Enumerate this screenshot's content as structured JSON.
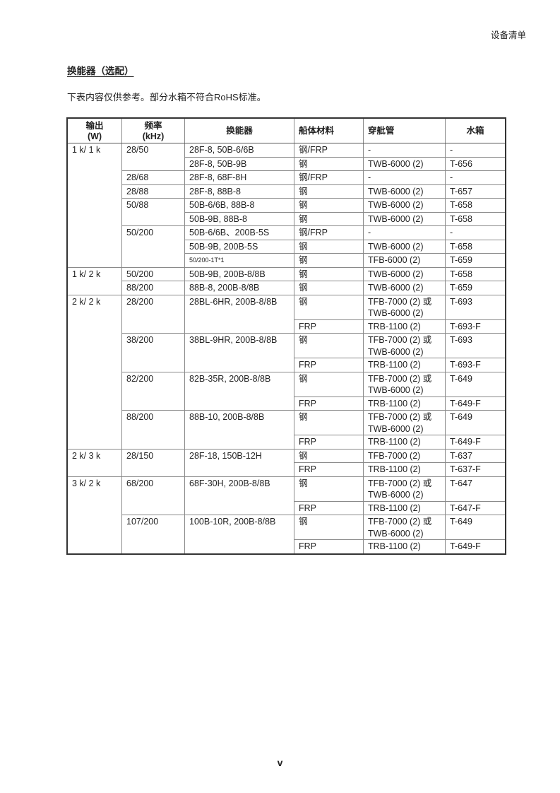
{
  "header": {
    "section": "设备清单"
  },
  "title": "换能器（选配）",
  "intro": "下表内容仅供参考。部分水箱不符合RoHS标准。",
  "table": {
    "headers": [
      "输出\n(W)",
      "频率\n(kHz)",
      "换能器",
      "船体材料",
      "穿舭管",
      "水箱"
    ],
    "rows": [
      [
        {
          "t": "1 k/ 1 k",
          "rs": 9
        },
        {
          "t": "28/50",
          "rs": 2
        },
        {
          "t": "28F-8, 50B-6/6B"
        },
        {
          "t": "钢/FRP"
        },
        {
          "t": "-"
        },
        {
          "t": "-"
        }
      ],
      [
        {
          "t": "28F-8, 50B-9B"
        },
        {
          "t": "钢"
        },
        {
          "t": "TWB-6000 (2)"
        },
        {
          "t": "T-656"
        }
      ],
      [
        {
          "t": "28/68"
        },
        {
          "t": "28F-8, 68F-8H"
        },
        {
          "t": "钢/FRP"
        },
        {
          "t": "-"
        },
        {
          "t": "-"
        }
      ],
      [
        {
          "t": "28/88"
        },
        {
          "t": "28F-8, 88B-8"
        },
        {
          "t": "钢"
        },
        {
          "t": "TWB-6000 (2)"
        },
        {
          "t": "T-657"
        }
      ],
      [
        {
          "t": "50/88",
          "rs": 2
        },
        {
          "t": "50B-6/6B, 88B-8"
        },
        {
          "t": "钢"
        },
        {
          "t": "TWB-6000 (2)"
        },
        {
          "t": "T-658"
        }
      ],
      [
        {
          "t": "50B-9B, 88B-8"
        },
        {
          "t": "钢"
        },
        {
          "t": "TWB-6000 (2)"
        },
        {
          "t": "T-658"
        }
      ],
      [
        {
          "t": "50/200",
          "rs": 3
        },
        {
          "t": "50B-6/6B、200B-5S"
        },
        {
          "t": "钢/FRP"
        },
        {
          "t": "-"
        },
        {
          "t": "-"
        }
      ],
      [
        {
          "t": "50B-9B, 200B-5S"
        },
        {
          "t": "钢"
        },
        {
          "t": "TWB-6000 (2)"
        },
        {
          "t": "T-658"
        }
      ],
      [
        {
          "t": "50/200-1T*1",
          "small": true
        },
        {
          "t": "钢"
        },
        {
          "t": "TFB-6000 (2)"
        },
        {
          "t": "T-659"
        }
      ],
      [
        {
          "t": "1 k/ 2 k",
          "rs": 2
        },
        {
          "t": "50/200"
        },
        {
          "t": "50B-9B, 200B-8/8B"
        },
        {
          "t": "钢"
        },
        {
          "t": "TWB-6000 (2)"
        },
        {
          "t": "T-658"
        }
      ],
      [
        {
          "t": "88/200"
        },
        {
          "t": "88B-8, 200B-8/8B"
        },
        {
          "t": "钢"
        },
        {
          "t": "TWB-6000 (2)"
        },
        {
          "t": "T-659"
        }
      ],
      [
        {
          "t": "2 k/ 2 k",
          "rs": 8
        },
        {
          "t": "28/200",
          "rs": 2
        },
        {
          "t": "28BL-6HR, 200B-8/8B",
          "rs": 2
        },
        {
          "t": "钢"
        },
        {
          "t": "TFB-7000 (2) 或\nTWB-6000 (2)"
        },
        {
          "t": "T-693"
        }
      ],
      [
        {
          "t": "FRP"
        },
        {
          "t": "TRB-1100 (2)"
        },
        {
          "t": "T-693-F"
        }
      ],
      [
        {
          "t": "38/200",
          "rs": 2
        },
        {
          "t": "38BL-9HR, 200B-8/8B",
          "rs": 2
        },
        {
          "t": "钢"
        },
        {
          "t": "TFB-7000 (2) 或\nTWB-6000 (2)"
        },
        {
          "t": "T-693"
        }
      ],
      [
        {
          "t": "FRP"
        },
        {
          "t": "TRB-1100 (2)"
        },
        {
          "t": "T-693-F"
        }
      ],
      [
        {
          "t": "82/200",
          "rs": 2
        },
        {
          "t": "82B-35R, 200B-8/8B",
          "rs": 2
        },
        {
          "t": "钢"
        },
        {
          "t": "TFB-7000 (2) 或\nTWB-6000 (2)"
        },
        {
          "t": "T-649"
        }
      ],
      [
        {
          "t": "FRP"
        },
        {
          "t": "TRB-1100 (2)"
        },
        {
          "t": "T-649-F"
        }
      ],
      [
        {
          "t": "88/200",
          "rs": 2
        },
        {
          "t": "88B-10, 200B-8/8B",
          "rs": 2
        },
        {
          "t": "钢"
        },
        {
          "t": "TFB-7000 (2) 或\nTWB-6000 (2)"
        },
        {
          "t": "T-649"
        }
      ],
      [
        {
          "t": "FRP"
        },
        {
          "t": "TRB-1100 (2)"
        },
        {
          "t": "T-649-F"
        }
      ],
      [
        {
          "t": "2 k/ 3 k",
          "rs": 2
        },
        {
          "t": "28/150",
          "rs": 2
        },
        {
          "t": "28F-18, 150B-12H",
          "rs": 2
        },
        {
          "t": "钢"
        },
        {
          "t": "TFB-7000 (2)"
        },
        {
          "t": "T-637"
        }
      ],
      [
        {
          "t": "FRP"
        },
        {
          "t": "TRB-1100 (2)"
        },
        {
          "t": "T-637-F"
        }
      ],
      [
        {
          "t": "3 k/ 2 k",
          "rs": 4
        },
        {
          "t": "68/200",
          "rs": 2
        },
        {
          "t": "68F-30H, 200B-8/8B",
          "rs": 2
        },
        {
          "t": "钢"
        },
        {
          "t": "TFB-7000 (2) 或\nTWB-6000 (2)"
        },
        {
          "t": "T-647"
        }
      ],
      [
        {
          "t": "FRP"
        },
        {
          "t": "TRB-1100 (2)"
        },
        {
          "t": "T-647-F"
        }
      ],
      [
        {
          "t": "107/200",
          "rs": 2
        },
        {
          "t": "100B-10R, 200B-8/8B",
          "rs": 2
        },
        {
          "t": "钢"
        },
        {
          "t": "TFB-7000 (2) 或\nTWB-6000 (2)"
        },
        {
          "t": "T-649"
        }
      ],
      [
        {
          "t": "FRP"
        },
        {
          "t": "TRB-1100 (2)"
        },
        {
          "t": "T-649-F"
        }
      ]
    ]
  },
  "page_number": "v"
}
